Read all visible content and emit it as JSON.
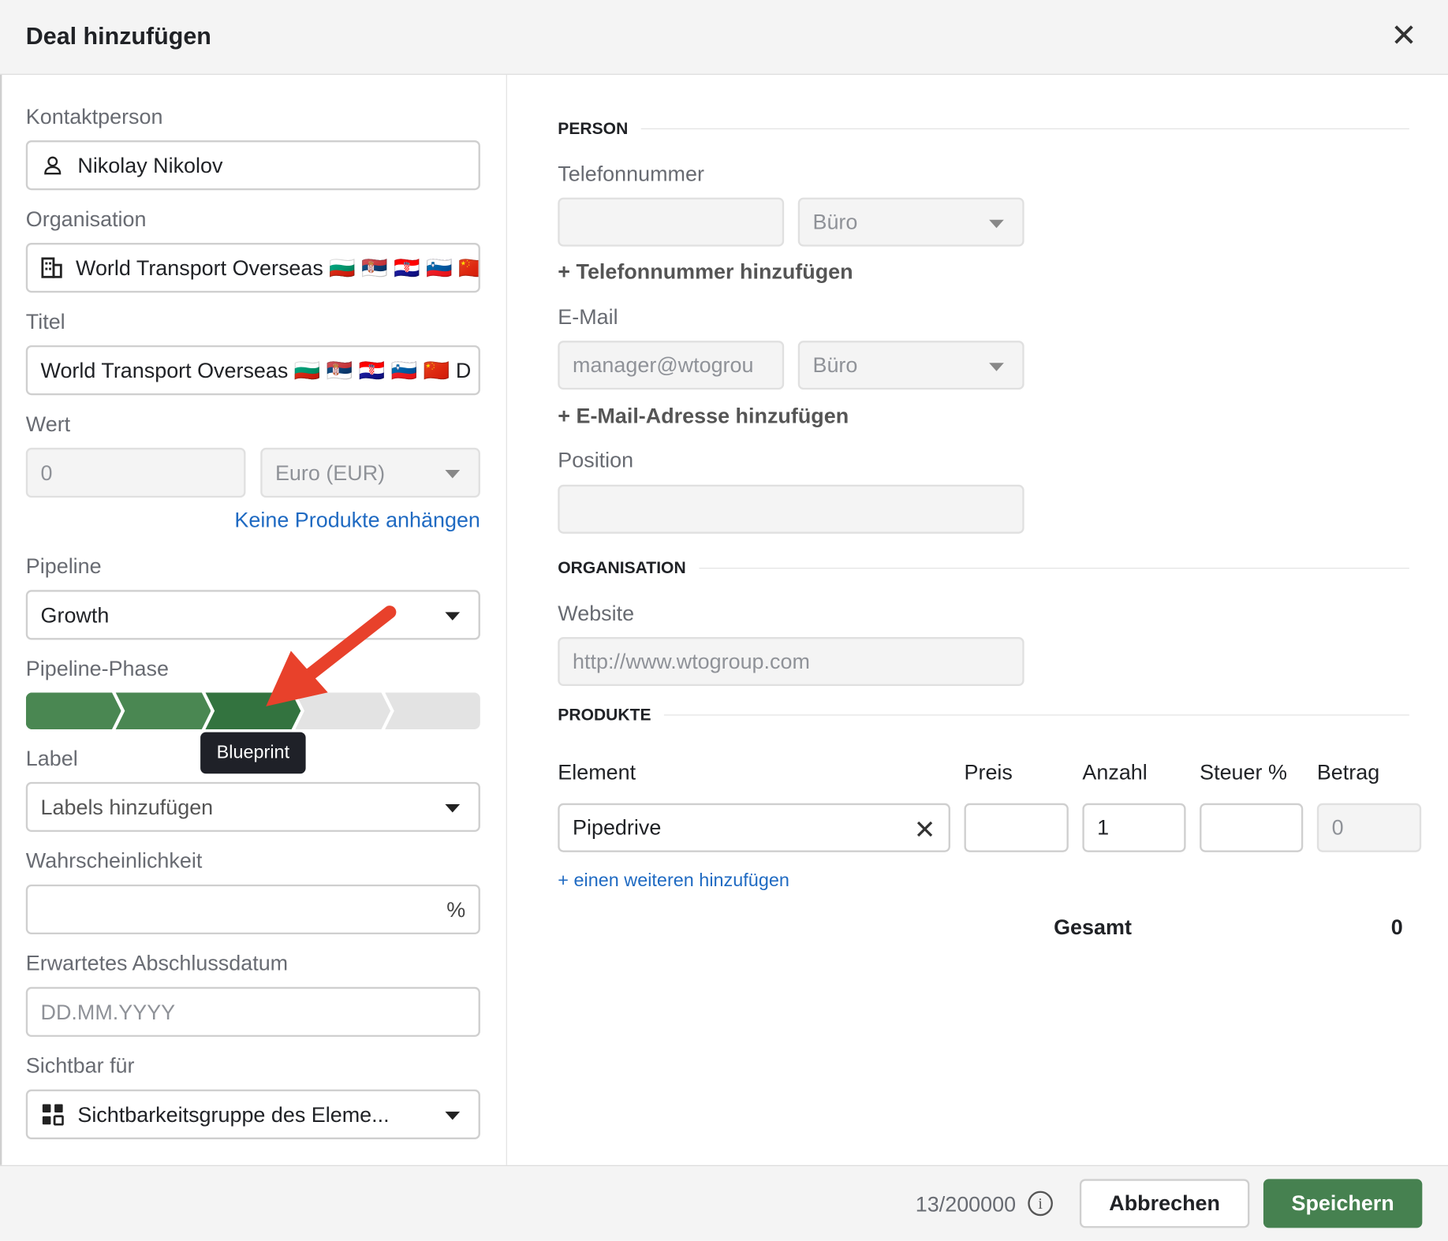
{
  "header": {
    "title": "Deal hinzufügen",
    "close_icon": "close-icon"
  },
  "left": {
    "contact": {
      "label": "Kontaktperson",
      "value": "Nikolay Nikolov"
    },
    "organisation": {
      "label": "Organisation",
      "value": "World Transport Overseas 🇧🇬 🇷🇸 🇭🇷 🇸🇮 🇨🇳"
    },
    "title": {
      "label": "Titel",
      "value": "World Transport Overseas 🇧🇬 🇷🇸 🇭🇷 🇸🇮 🇨🇳 D"
    },
    "value": {
      "label": "Wert",
      "amount": "0",
      "currency": "Euro (EUR)"
    },
    "no_products_link": "Keine Produkte anhängen",
    "pipeline": {
      "label": "Pipeline",
      "value": "Growth"
    },
    "phase": {
      "label": "Pipeline-Phase",
      "stages_total": 5,
      "current_stage": 3,
      "tooltip": "Blueprint",
      "colors": {
        "done": "#4a8752",
        "current": "#33733f",
        "todo": "#e3e3e3"
      }
    },
    "labels": {
      "label": "Label",
      "placeholder": "Labels hinzufügen"
    },
    "probability": {
      "label": "Wahrscheinlichkeit",
      "unit": "%"
    },
    "close_date": {
      "label": "Erwartetes Abschlussdatum",
      "placeholder": "DD.MM.YYYY"
    },
    "visibility": {
      "label": "Sichtbar für",
      "value": "Sichtbarkeitsgruppe des Eleme..."
    }
  },
  "right": {
    "person": {
      "heading": "PERSON",
      "phone_label": "Telefonnummer",
      "phone_type": "Büro",
      "add_phone": "+ Telefonnummer hinzufügen",
      "email_label": "E-Mail",
      "email_value": "manager@wtogrou",
      "email_type": "Büro",
      "add_email": "+ E-Mail-Adresse hinzufügen",
      "position_label": "Position"
    },
    "organisation": {
      "heading": "ORGANISATION",
      "website_label": "Website",
      "website_value": "http://www.wtogroup.com"
    },
    "products": {
      "heading": "PRODUKTE",
      "columns": [
        "Element",
        "Preis",
        "Anzahl",
        "Steuer %",
        "Betrag"
      ],
      "row": {
        "element": "Pipedrive",
        "price": "",
        "quantity": "1",
        "tax": "",
        "amount": "0"
      },
      "add_more": "+ einen weiteren hinzufügen",
      "total_label": "Gesamt",
      "total_value": "0"
    }
  },
  "footer": {
    "counter": "13/200000",
    "cancel": "Abbrechen",
    "save": "Speichern",
    "accent": "#468150"
  }
}
